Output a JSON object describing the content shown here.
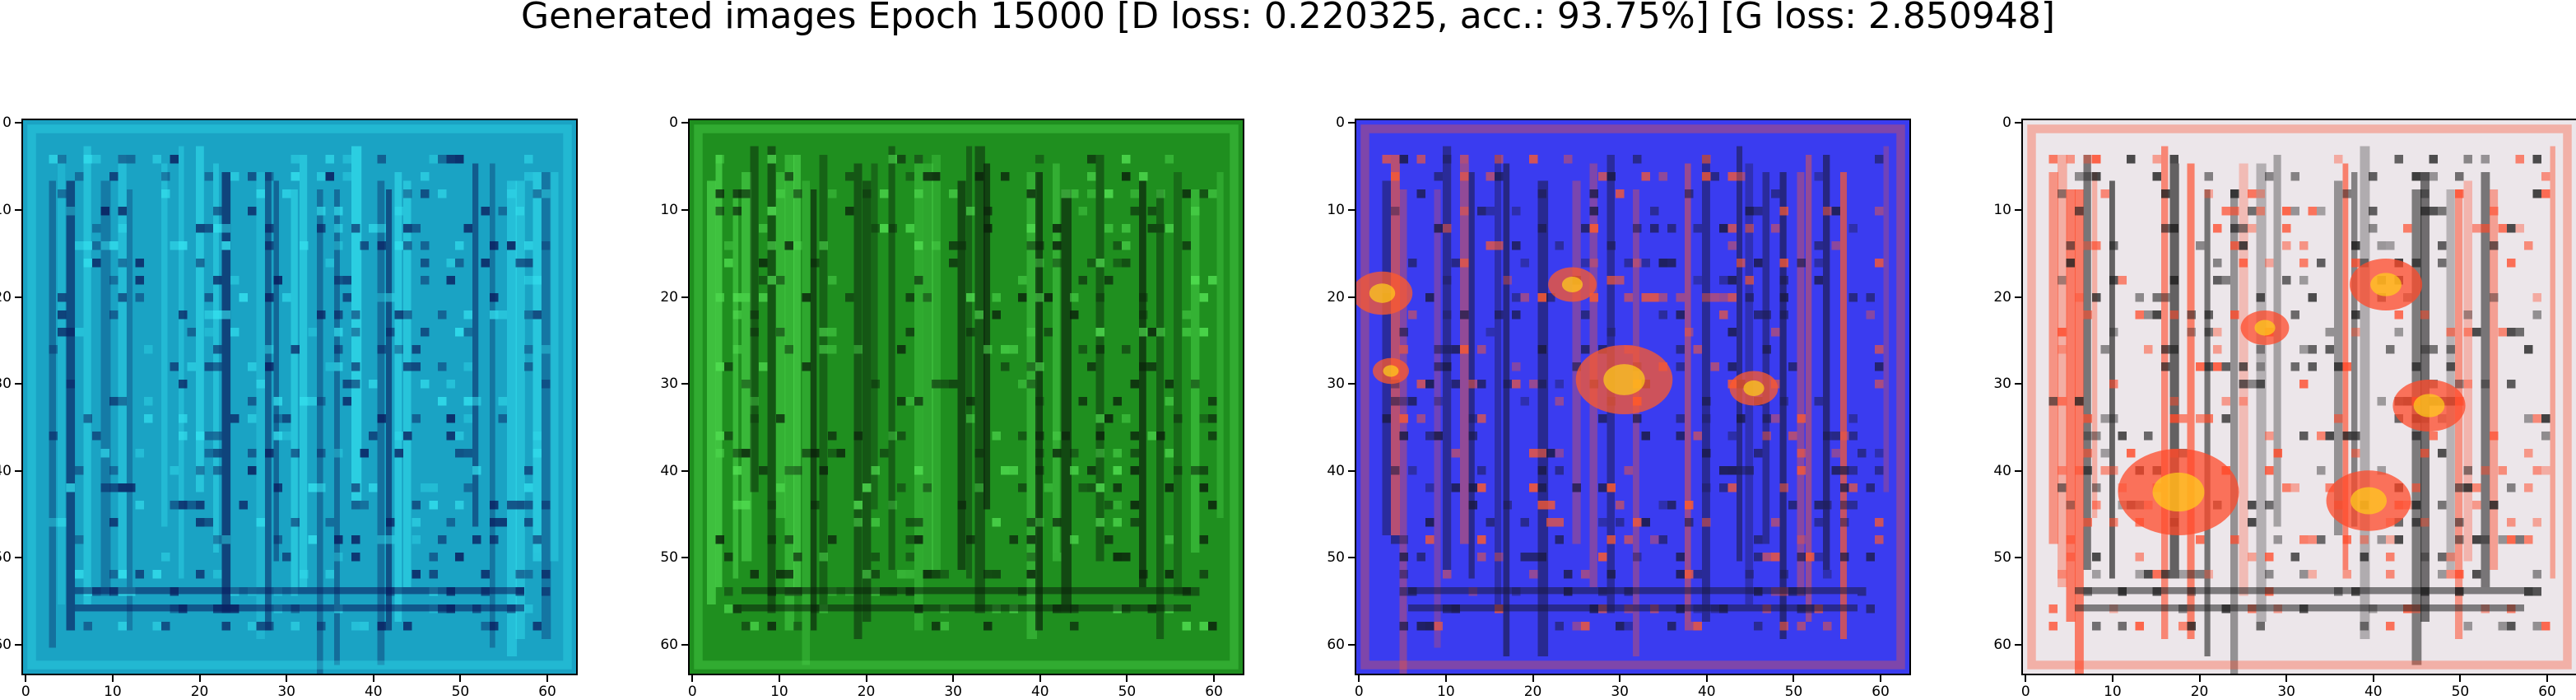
{
  "figure": {
    "title": "Generated images Epoch 15000 [D loss: 0.220325, acc.: 93.75%] [G loss: 2.850948]"
  },
  "axes": {
    "x_ticks": [
      "0",
      "10",
      "20",
      "30",
      "40",
      "50",
      "60"
    ],
    "y_ticks": [
      "0",
      "10",
      "20",
      "30",
      "40",
      "50",
      "60"
    ]
  },
  "panels": [
    {
      "name": "generated-image-1",
      "base_color": "#1aa3c4",
      "dark_color": "#0a1a5c",
      "accent_color": "#33e0ee"
    },
    {
      "name": "generated-image-2",
      "base_color": "#1f8f1f",
      "dark_color": "#0b220b",
      "accent_color": "#52e052"
    },
    {
      "name": "generated-image-3",
      "base_color": "#3a3cf0",
      "dark_color": "#1a1a40",
      "accent_color": "#ff5a2a"
    },
    {
      "name": "generated-image-4",
      "base_color": "#ece6ea",
      "dark_color": "#202020",
      "accent_color": "#ff4a2a"
    }
  ]
}
